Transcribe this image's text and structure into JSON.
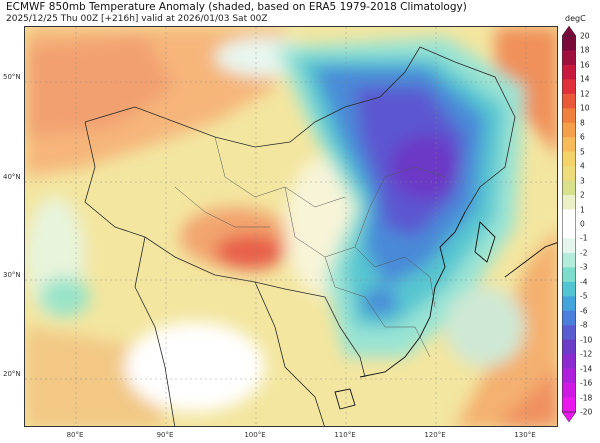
{
  "header": {
    "title": "ECMWF 850mb Temperature Anomaly (shaded, based on ERA5 1979-2018 Climatology)",
    "subtitle": "2025/12/25 Thu 00Z [+216h] valid at 2026/01/03 Sat 00Z"
  },
  "map": {
    "lat_labels": [
      "50°N",
      "40°N",
      "30°N",
      "20°N"
    ],
    "lon_labels": [
      "80°E",
      "90°E",
      "100°E",
      "110°E",
      "120°E",
      "130°E"
    ]
  },
  "colorbar": {
    "unit": "degC",
    "ticks": [
      "20",
      "18",
      "16",
      "14",
      "12",
      "10",
      "8",
      "6",
      "5",
      "4",
      "3",
      "2",
      "1",
      "0",
      "-1",
      "-2",
      "-3",
      "-4",
      "-5",
      "-6",
      "-8",
      "-10",
      "-12",
      "-14",
      "-16",
      "-18",
      "-20"
    ],
    "colors": [
      "#7a0a3a",
      "#a0103e",
      "#c8183e",
      "#e0303a",
      "#ea5a3a",
      "#f0803e",
      "#f4a04a",
      "#f6bc5a",
      "#f4d46a",
      "#ecdc7a",
      "#d8e08c",
      "#eef0c8",
      "#ffffff",
      "#ffffff",
      "#e4f6ee",
      "#b4ecdc",
      "#7edccc",
      "#52c4d2",
      "#44a4dc",
      "#4a80dc",
      "#5a5cd2",
      "#6a3cc8",
      "#8a2ad0",
      "#b020dc",
      "#d018e4",
      "#e818ee"
    ]
  }
}
